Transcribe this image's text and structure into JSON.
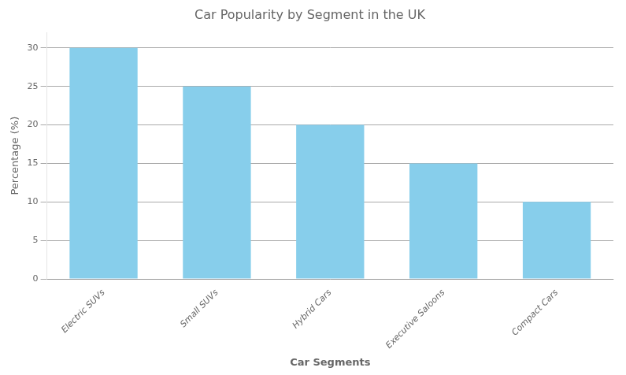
{
  "chart_data": {
    "type": "bar",
    "title": "Car Popularity by Segment in the UK",
    "xlabel": "Car Segments",
    "ylabel": "Percentage (%)",
    "categories": [
      "Electric SUVs",
      "Small SUVs",
      "Hybrid Cars",
      "Executive Saloons",
      "Compact Cars"
    ],
    "values": [
      30,
      25,
      20,
      15,
      10
    ],
    "color": "#87CEEB",
    "ylim": [
      0,
      32
    ],
    "yticks": [
      0,
      5,
      10,
      15,
      20,
      25,
      30
    ],
    "grid": true
  }
}
